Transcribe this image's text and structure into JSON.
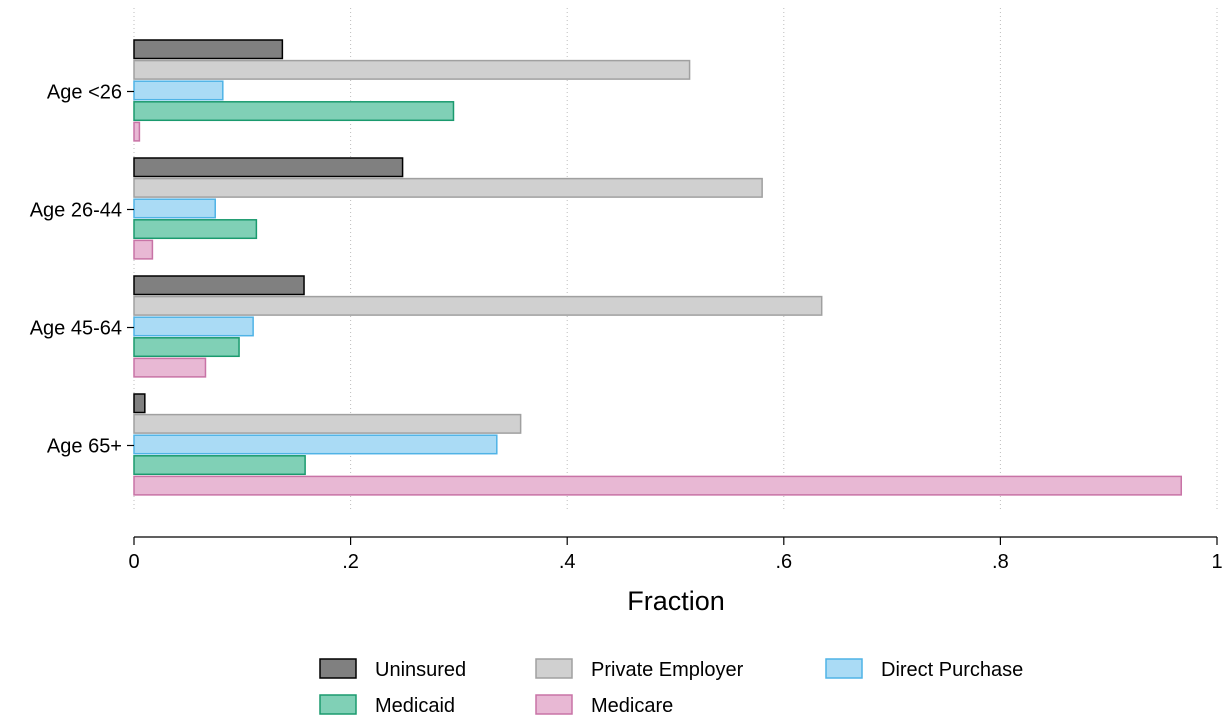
{
  "chart_data": {
    "type": "bar",
    "orientation": "horizontal",
    "categories": [
      "Age <26",
      "Age 26-44",
      "Age 45-64",
      "Age 65+"
    ],
    "series": [
      {
        "name": "Uninsured",
        "values": [
          0.137,
          0.248,
          0.157,
          0.01
        ],
        "fill": "#808080",
        "stroke": "#000000"
      },
      {
        "name": "Private Employer",
        "values": [
          0.513,
          0.58,
          0.635,
          0.357
        ],
        "fill": "#d0d0d0",
        "stroke": "#a0a0a0"
      },
      {
        "name": "Direct Purchase",
        "values": [
          0.082,
          0.075,
          0.11,
          0.335
        ],
        "fill": "#aadbf5",
        "stroke": "#4fb3e6"
      },
      {
        "name": "Medicaid",
        "values": [
          0.295,
          0.113,
          0.097,
          0.158
        ],
        "fill": "#80d0b6",
        "stroke": "#1a9a6e"
      },
      {
        "name": "Medicare",
        "values": [
          0.005,
          0.017,
          0.066,
          0.967
        ],
        "fill": "#e8b8d4",
        "stroke": "#c873a6"
      }
    ],
    "xlabel": "Fraction",
    "ylabel": "",
    "xlim": [
      0,
      1
    ],
    "xticks": [
      0,
      0.2,
      0.4,
      0.6,
      0.8,
      1
    ],
    "xtick_labels": [
      "0",
      ".2",
      ".4",
      ".6",
      ".8",
      "1"
    ],
    "grid": "vertical-dotted",
    "legend": {
      "position": "bottom",
      "columns": 3
    }
  }
}
